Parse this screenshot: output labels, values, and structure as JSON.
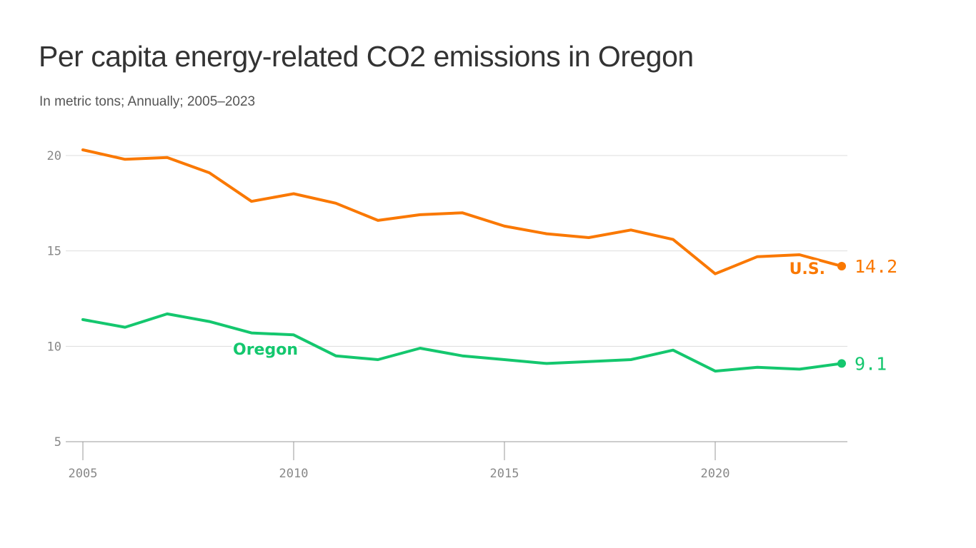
{
  "title": "Per capita energy-related CO2 emissions in Oregon",
  "subtitle": "In metric tons; Annually; 2005–2023",
  "colors": {
    "us": "#FA7800",
    "oregon": "#14C76E",
    "grid": "#dddddd",
    "axis": "#999999",
    "tick_text": "#888888"
  },
  "chart_data": {
    "type": "line",
    "title": "Per capita energy-related CO2 emissions in Oregon",
    "subtitle": "In metric tons; Annually; 2005–2023",
    "xlabel": "",
    "ylabel": "",
    "x": [
      2005,
      2006,
      2007,
      2008,
      2009,
      2010,
      2011,
      2012,
      2013,
      2014,
      2015,
      2016,
      2017,
      2018,
      2019,
      2020,
      2021,
      2022,
      2023
    ],
    "xlim": [
      2005,
      2023
    ],
    "ylim": [
      5,
      20
    ],
    "x_ticks": [
      2005,
      2010,
      2015,
      2020
    ],
    "y_ticks": [
      5,
      10,
      15,
      20
    ],
    "grid": true,
    "series": [
      {
        "name": "U.S.",
        "key": "us",
        "values": [
          20.3,
          19.8,
          19.9,
          19.1,
          17.6,
          18.0,
          17.5,
          16.6,
          16.9,
          17.0,
          16.3,
          15.9,
          15.7,
          16.1,
          15.6,
          13.8,
          14.7,
          14.8,
          14.2
        ],
        "end_label": "14.2"
      },
      {
        "name": "Oregon",
        "key": "oregon",
        "values": [
          11.4,
          11.0,
          11.7,
          11.3,
          10.7,
          10.6,
          9.5,
          9.3,
          9.9,
          9.5,
          9.3,
          9.1,
          9.2,
          9.3,
          9.8,
          8.7,
          8.9,
          8.8,
          9.1
        ],
        "end_label": "9.1"
      }
    ]
  }
}
